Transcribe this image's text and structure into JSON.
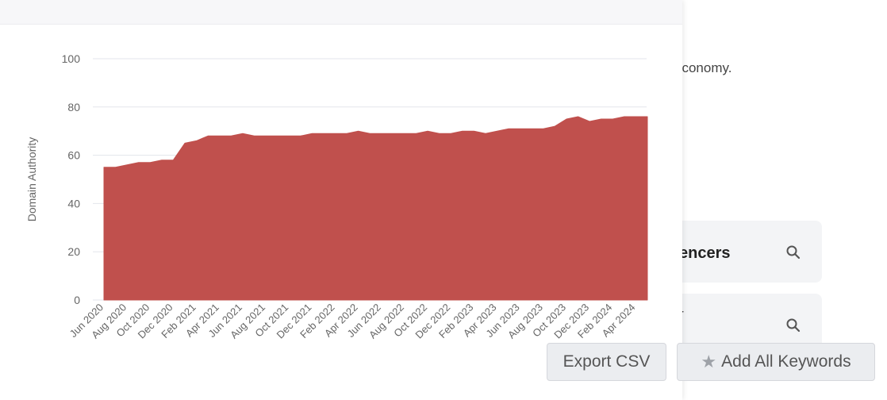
{
  "background": {
    "text_fragment": "economy.",
    "card_1_title": "encers",
    "card_2_text": "r"
  },
  "buttons": {
    "export_csv": "Export CSV",
    "add_all_keywords": "Add All Keywords"
  },
  "icons": {
    "search": "search-icon",
    "star": "star-icon"
  },
  "chart_data": {
    "type": "area",
    "title": "",
    "xlabel": "",
    "ylabel": "Domain Authority",
    "ylim": [
      0,
      100
    ],
    "yticks": [
      0,
      20,
      40,
      60,
      80,
      100
    ],
    "grid": true,
    "color": "#c0504d",
    "x_tick_labels": [
      "Jun 2020",
      "Aug 2020",
      "Oct 2020",
      "Dec 2020",
      "Feb 2021",
      "Apr 2021",
      "Jun 2021",
      "Aug 2021",
      "Oct 2021",
      "Dec 2021",
      "Feb 2022",
      "Apr 2022",
      "Jun 2022",
      "Aug 2022",
      "Oct 2022",
      "Dec 2022",
      "Feb 2023",
      "Apr 2023",
      "Jun 2023",
      "Aug 2023",
      "Oct 2023",
      "Dec 2023",
      "Feb 2024",
      "Apr 2024"
    ],
    "series": [
      {
        "x": [
          "Jun 2020",
          "Jul 2020",
          "Aug 2020",
          "Sep 2020",
          "Oct 2020",
          "Nov 2020",
          "Dec 2020",
          "Jan 2021",
          "Feb 2021",
          "Mar 2021",
          "Apr 2021",
          "May 2021",
          "Jun 2021",
          "Jul 2021",
          "Aug 2021",
          "Sep 2021",
          "Oct 2021",
          "Nov 2021",
          "Dec 2021",
          "Jan 2022",
          "Feb 2022",
          "Mar 2022",
          "Apr 2022",
          "May 2022",
          "Jun 2022",
          "Jul 2022",
          "Aug 2022",
          "Sep 2022",
          "Oct 2022",
          "Nov 2022",
          "Dec 2022",
          "Jan 2023",
          "Feb 2023",
          "Mar 2023",
          "Apr 2023",
          "May 2023",
          "Jun 2023",
          "Jul 2023",
          "Aug 2023",
          "Sep 2023",
          "Oct 2023",
          "Nov 2023",
          "Dec 2023",
          "Jan 2024",
          "Feb 2024",
          "Mar 2024",
          "Apr 2024",
          "May 2024"
        ],
        "values": [
          55,
          55,
          56,
          57,
          57,
          58,
          58,
          65,
          66,
          68,
          68,
          68,
          69,
          68,
          68,
          68,
          68,
          68,
          69,
          69,
          69,
          69,
          70,
          69,
          69,
          69,
          69,
          69,
          70,
          69,
          69,
          70,
          70,
          69,
          70,
          71,
          71,
          71,
          71,
          72,
          75,
          76,
          74,
          75,
          75,
          76,
          76,
          76
        ]
      }
    ]
  }
}
